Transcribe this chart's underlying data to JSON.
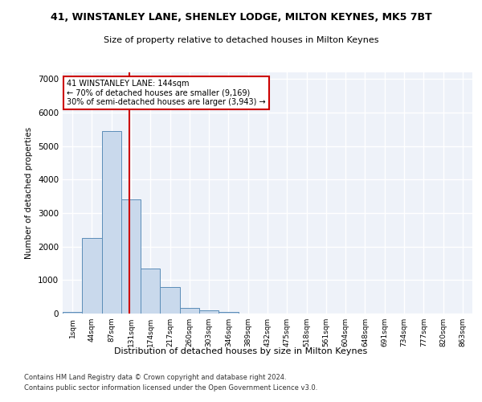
{
  "title": "41, WINSTANLEY LANE, SHENLEY LODGE, MILTON KEYNES, MK5 7BT",
  "subtitle": "Size of property relative to detached houses in Milton Keynes",
  "xlabel": "Distribution of detached houses by size in Milton Keynes",
  "ylabel": "Number of detached properties",
  "bar_color": "#c9d9ec",
  "bar_edge_color": "#5b8db8",
  "background_color": "#eef2f9",
  "grid_color": "#ffffff",
  "bin_labels": [
    "1sqm",
    "44sqm",
    "87sqm",
    "131sqm",
    "174sqm",
    "217sqm",
    "260sqm",
    "303sqm",
    "346sqm",
    "389sqm",
    "432sqm",
    "475sqm",
    "518sqm",
    "561sqm",
    "604sqm",
    "648sqm",
    "691sqm",
    "734sqm",
    "777sqm",
    "820sqm",
    "863sqm"
  ],
  "bar_values": [
    50,
    2250,
    5450,
    3400,
    1350,
    800,
    175,
    100,
    50,
    0,
    0,
    0,
    0,
    0,
    0,
    0,
    0,
    0,
    0,
    0,
    0
  ],
  "vline_x": 2.93,
  "vline_color": "#cc0000",
  "ylim": [
    0,
    7200
  ],
  "yticks": [
    0,
    1000,
    2000,
    3000,
    4000,
    5000,
    6000,
    7000
  ],
  "annotation_text": "41 WINSTANLEY LANE: 144sqm\n← 70% of detached houses are smaller (9,169)\n30% of semi-detached houses are larger (3,943) →",
  "annotation_box_color": "#ffffff",
  "annotation_box_edge": "#cc0000",
  "footnote1": "Contains HM Land Registry data © Crown copyright and database right 2024.",
  "footnote2": "Contains public sector information licensed under the Open Government Licence v3.0."
}
